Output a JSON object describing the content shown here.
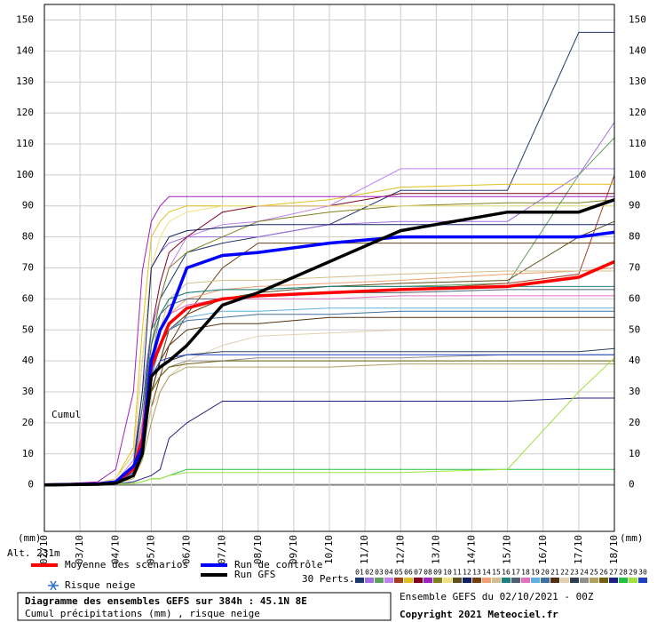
{
  "chart_data": {
    "type": "line",
    "annotation": "Cumul",
    "y_unit": "(mm)",
    "altitude": "Alt. 231m",
    "snow_label": "Risque neige",
    "perturbations_label": "30 Perts.",
    "title": "Diagramme des ensembles GEFS sur 384h : 45.1N 8E",
    "subtitle": "Cumul précipitations (mm) , risque neige",
    "run_info": "Ensemble GEFS du 02/10/2021 - 00Z",
    "copyright": "Copyright 2021 Meteociel.fr",
    "xlim": [
      0,
      16
    ],
    "ylim": [
      -15,
      155
    ],
    "grid": true,
    "xticks": [
      {
        "value": 0,
        "label": "02/10"
      },
      {
        "value": 1,
        "label": "03/10"
      },
      {
        "value": 2,
        "label": "04/10"
      },
      {
        "value": 3,
        "label": "05/10"
      },
      {
        "value": 4,
        "label": "06/10"
      },
      {
        "value": 5,
        "label": "07/10"
      },
      {
        "value": 6,
        "label": "08/10"
      },
      {
        "value": 7,
        "label": "09/10"
      },
      {
        "value": 8,
        "label": "10/10"
      },
      {
        "value": 9,
        "label": "11/10"
      },
      {
        "value": 10,
        "label": "12/10"
      },
      {
        "value": 11,
        "label": "13/10"
      },
      {
        "value": 12,
        "label": "14/10"
      },
      {
        "value": 13,
        "label": "15/10"
      },
      {
        "value": 14,
        "label": "16/10"
      },
      {
        "value": 15,
        "label": "17/10"
      },
      {
        "value": 16,
        "label": "18/10"
      }
    ],
    "yticks": [
      0,
      10,
      20,
      30,
      40,
      50,
      60,
      70,
      80,
      90,
      100,
      110,
      120,
      130,
      140,
      150
    ],
    "x": [
      0,
      1.5,
      2,
      2.5,
      2.75,
      3,
      3.25,
      3.5,
      4,
      5,
      6,
      8,
      10,
      13,
      15,
      16
    ],
    "series": [
      {
        "name": "Moyenne des scénarios",
        "color": "#ff0000",
        "values": [
          0,
          0.3,
          1,
          5,
          15,
          38,
          45,
          52,
          57,
          60,
          61,
          62,
          63,
          64,
          67,
          72
        ]
      },
      {
        "name": "Run de contrôle",
        "color": "#0000ff",
        "values": [
          0,
          0.3,
          1,
          6,
          12,
          40,
          50,
          55,
          70,
          74,
          75,
          78,
          80,
          80,
          80,
          81.5
        ]
      },
      {
        "name": "Run GFS",
        "color": "#000000",
        "values": [
          0,
          0.2,
          0.5,
          3,
          10,
          35,
          38,
          40,
          45,
          58,
          62,
          72,
          82,
          88,
          88,
          92
        ]
      }
    ],
    "perturbations": [
      {
        "name": "01",
        "color": "#203870",
        "values": [
          0,
          0.3,
          1,
          5,
          20,
          50,
          60,
          65,
          75,
          78,
          80,
          84,
          95,
          95,
          146,
          146
        ]
      },
      {
        "name": "02",
        "color": "#a070e0",
        "values": [
          0,
          0.5,
          2,
          10,
          40,
          70,
          75,
          78,
          80,
          80,
          80,
          84,
          85,
          85,
          100,
          117
        ]
      },
      {
        "name": "03",
        "color": "#60a060",
        "values": [
          0,
          0.3,
          1,
          5,
          20,
          40,
          55,
          60,
          62,
          63,
          63,
          64,
          64,
          65,
          100,
          112
        ]
      },
      {
        "name": "04",
        "color": "#c080f0",
        "values": [
          0,
          0.3,
          1,
          8,
          30,
          50,
          60,
          70,
          80,
          84,
          85,
          90,
          102,
          102,
          102,
          102
        ]
      },
      {
        "name": "05",
        "color": "#a04020",
        "values": [
          0,
          0.2,
          1,
          5,
          15,
          30,
          40,
          50,
          55,
          60,
          61,
          62,
          63,
          65,
          68,
          100
        ]
      },
      {
        "name": "06",
        "color": "#e0c020",
        "values": [
          0,
          0.5,
          2,
          12,
          50,
          80,
          85,
          88,
          90,
          90,
          90,
          92,
          96,
          97,
          97,
          97
        ]
      },
      {
        "name": "07",
        "color": "#800020",
        "values": [
          0,
          0.3,
          1,
          6,
          25,
          50,
          65,
          75,
          80,
          88,
          90,
          90,
          94,
          94,
          94,
          94
        ]
      },
      {
        "name": "08",
        "color": "#a020c0",
        "values": [
          0,
          1,
          5,
          30,
          69,
          85,
          90,
          93,
          93,
          93,
          93,
          93,
          93,
          93,
          93,
          93
        ]
      },
      {
        "name": "09",
        "color": "#808020",
        "values": [
          0,
          0.3,
          1,
          5,
          20,
          45,
          60,
          70,
          75,
          80,
          85,
          88,
          90,
          91,
          91,
          92
        ]
      },
      {
        "name": "10",
        "color": "#f0e080",
        "values": [
          0,
          0.3,
          2,
          10,
          40,
          70,
          80,
          85,
          88,
          90,
          90,
          90,
          90,
          90,
          90,
          90
        ]
      },
      {
        "name": "11",
        "color": "#605020",
        "values": [
          0,
          0.2,
          1,
          4,
          15,
          30,
          40,
          50,
          55,
          60,
          62,
          64,
          65,
          66,
          80,
          85
        ]
      },
      {
        "name": "12",
        "color": "#102060",
        "values": [
          0,
          0.3,
          1,
          6,
          30,
          70,
          75,
          80,
          82,
          83,
          84,
          84,
          84,
          84,
          84,
          84
        ]
      },
      {
        "name": "13",
        "color": "#704010",
        "values": [
          0,
          0.2,
          0.5,
          3,
          10,
          25,
          35,
          45,
          55,
          70,
          78,
          78,
          78,
          78,
          78,
          78
        ]
      },
      {
        "name": "14",
        "color": "#f0a070",
        "values": [
          0,
          0.2,
          1,
          5,
          20,
          40,
          50,
          55,
          60,
          63,
          64,
          65,
          66,
          68,
          69,
          70
        ]
      },
      {
        "name": "15",
        "color": "#d0c090",
        "values": [
          0,
          0.2,
          1,
          4,
          15,
          35,
          50,
          60,
          65,
          66,
          66,
          67,
          68,
          69,
          69,
          69
        ]
      },
      {
        "name": "16",
        "color": "#208080",
        "values": [
          0,
          0.3,
          1,
          5,
          25,
          50,
          55,
          60,
          62,
          63,
          63,
          64,
          64,
          64,
          64,
          64
        ]
      },
      {
        "name": "17",
        "color": "#506070",
        "values": [
          0,
          0.2,
          1,
          4,
          20,
          45,
          55,
          58,
          60,
          60,
          61,
          62,
          62,
          63,
          63,
          63
        ]
      },
      {
        "name": "18",
        "color": "#e070c0",
        "values": [
          0,
          0.2,
          1,
          5,
          20,
          40,
          50,
          55,
          58,
          60,
          60,
          60,
          61,
          61,
          61,
          61
        ]
      },
      {
        "name": "19",
        "color": "#60b0e0",
        "values": [
          0,
          0.2,
          1,
          4,
          15,
          35,
          45,
          50,
          54,
          56,
          56,
          57,
          57,
          57,
          57,
          57
        ]
      },
      {
        "name": "20",
        "color": "#4070a0",
        "values": [
          0,
          0.2,
          1,
          4,
          15,
          35,
          45,
          50,
          53,
          54,
          55,
          55,
          56,
          56,
          56,
          56
        ]
      },
      {
        "name": "21",
        "color": "#503010",
        "values": [
          0,
          0.2,
          1,
          3,
          12,
          30,
          40,
          45,
          50,
          52,
          52,
          54,
          54,
          54,
          54,
          54
        ]
      },
      {
        "name": "22",
        "color": "#e0d0b0",
        "values": [
          0,
          0.2,
          0.5,
          3,
          10,
          25,
          30,
          35,
          40,
          45,
          48,
          49,
          50,
          50,
          50,
          50
        ]
      },
      {
        "name": "23",
        "color": "#304050",
        "values": [
          0,
          0.2,
          1,
          4,
          15,
          35,
          38,
          40,
          42,
          43,
          43,
          43,
          43,
          43,
          43,
          44
        ]
      },
      {
        "name": "24",
        "color": "#909090",
        "values": [
          0,
          0.2,
          1,
          3,
          10,
          30,
          35,
          38,
          40,
          40,
          41,
          41,
          41,
          42,
          42,
          42
        ]
      },
      {
        "name": "25",
        "color": "#b0a060",
        "values": [
          0,
          0.2,
          0.5,
          2,
          8,
          20,
          30,
          35,
          38,
          38,
          38,
          38,
          39,
          39,
          39,
          39
        ]
      },
      {
        "name": "26",
        "color": "#706010",
        "values": [
          0,
          0.2,
          1,
          3,
          10,
          30,
          35,
          38,
          39,
          40,
          40,
          40,
          40,
          40,
          40,
          40
        ]
      },
      {
        "name": "27",
        "color": "#202080",
        "values": [
          0,
          0.1,
          0.3,
          1,
          2,
          3,
          5,
          15,
          20,
          27,
          27,
          27,
          27,
          27,
          28,
          28
        ]
      },
      {
        "name": "28",
        "color": "#20c040",
        "values": [
          0,
          0.1,
          0.3,
          0.5,
          1,
          2,
          2,
          3,
          5,
          5,
          5,
          5,
          5,
          5,
          5,
          5
        ]
      },
      {
        "name": "29",
        "color": "#a0e040",
        "values": [
          0,
          0.1,
          0.3,
          0.5,
          1,
          2,
          2,
          3,
          4,
          4,
          4,
          4,
          4,
          5,
          30,
          41
        ]
      },
      {
        "name": "30",
        "color": "#2040c0",
        "values": [
          0,
          0.2,
          1,
          4,
          15,
          35,
          40,
          41,
          42,
          42,
          42,
          42,
          42,
          42,
          42,
          42
        ]
      }
    ]
  }
}
